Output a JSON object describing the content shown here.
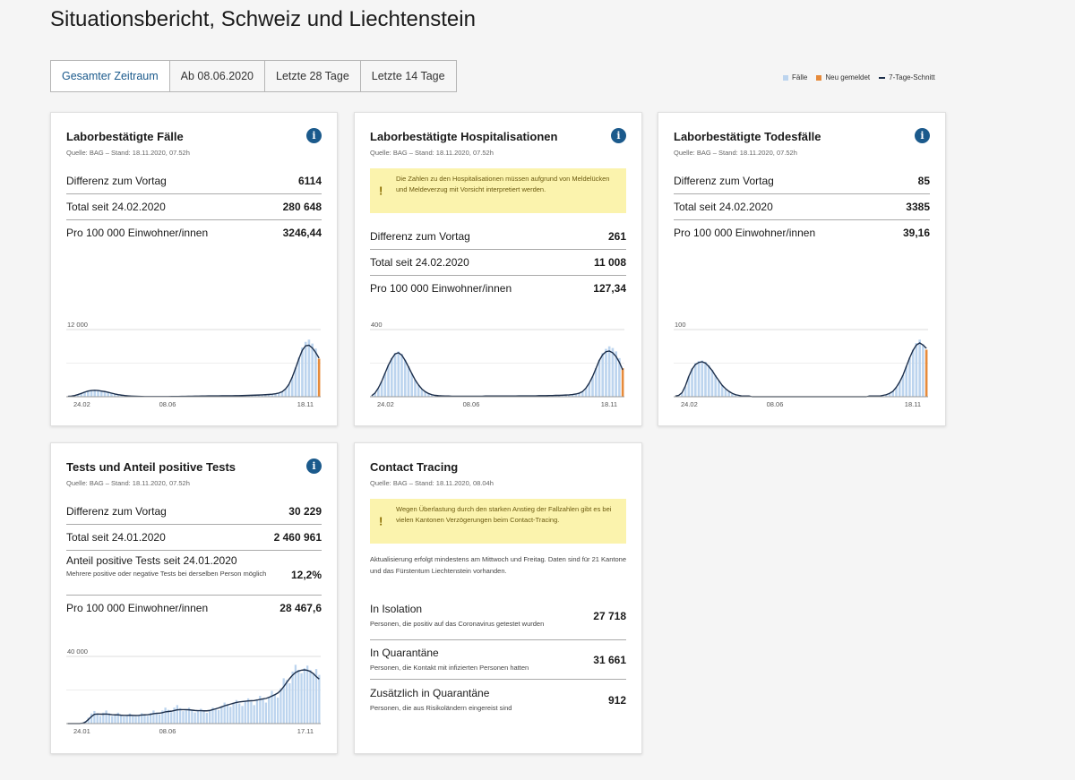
{
  "page": {
    "title": "Situationsbericht, Schweiz und Liechtenstein"
  },
  "tabs": [
    "Gesamter Zeitraum",
    "Ab 08.06.2020",
    "Letzte 28 Tage",
    "Letzte 14 Tage"
  ],
  "legend": [
    {
      "label": "Fälle",
      "color": "#bcd4ee"
    },
    {
      "label": "Neu gemeldet",
      "color": "#e68a3a"
    },
    {
      "label": "7-Tage-Schnitt",
      "color": "#1c2e4a"
    }
  ],
  "cards": {
    "cases": {
      "title": "Laborbestätigte Fälle",
      "source": "Quelle: BAG – Stand: 18.11.2020, 07.52h",
      "rows": [
        {
          "label": "Differenz zum Vortag",
          "value": "6114"
        },
        {
          "label": "Total seit 24.02.2020",
          "value": "280 648"
        },
        {
          "label": "Pro 100 000 Einwohner/innen",
          "value": "3246,44"
        }
      ]
    },
    "hosp": {
      "title": "Laborbestätigte Hospitalisationen",
      "source": "Quelle: BAG – Stand: 18.11.2020, 07.52h",
      "warning": "Die Zahlen zu den Hospitalisationen müssen aufgrund von Meldelücken und Meldeverzug mit Vorsicht interpretiert werden.",
      "rows": [
        {
          "label": "Differenz zum Vortag",
          "value": "261"
        },
        {
          "label": "Total seit 24.02.2020",
          "value": "11 008"
        },
        {
          "label": "Pro 100 000 Einwohner/innen",
          "value": "127,34"
        }
      ]
    },
    "deaths": {
      "title": "Laborbestätigte Todesfälle",
      "source": "Quelle: BAG – Stand: 18.11.2020, 07.52h",
      "rows": [
        {
          "label": "Differenz zum Vortag",
          "value": "85"
        },
        {
          "label": "Total seit 24.02.2020",
          "value": "3385"
        },
        {
          "label": "Pro 100 000 Einwohner/innen",
          "value": "39,16"
        }
      ]
    },
    "tests": {
      "title": "Tests und Anteil positive Tests",
      "source": "Quelle: BAG – Stand: 18.11.2020, 07.52h",
      "rows": [
        {
          "label": "Differenz zum Vortag",
          "value": "30 229"
        },
        {
          "label": "Total seit 24.01.2020",
          "value": "2 460 961"
        },
        {
          "label": "Anteil positive Tests seit 24.01.2020",
          "value": "12,2%",
          "sub": "Mehrere positive oder negative Tests bei derselben Person möglich"
        },
        {
          "label": "Pro 100 000 Einwohner/innen",
          "value": "28 467,6"
        }
      ]
    },
    "tracing": {
      "title": "Contact Tracing",
      "source": "Quelle: BAG – Stand: 18.11.2020, 08.04h",
      "warning": "Wegen Überlastung durch den starken Anstieg der Fallzahlen gibt es bei vielen Kantonen Verzögerungen beim Contact-Tracing.",
      "note": "Aktualisierung erfolgt mindestens am Mittwoch und Freitag. Daten sind für 21 Kantone und das Fürstentum Liechtenstein vorhanden.",
      "rows": [
        {
          "label": "In Isolation",
          "desc": "Personen, die positiv auf das Coronavirus getestet wurden",
          "value": "27 718"
        },
        {
          "label": "In Quarantäne",
          "desc": "Personen, die Kontakt mit infizierten Personen hatten",
          "value": "31 661"
        },
        {
          "label": "Zusätzlich in Quarantäne",
          "desc": "Personen, die aus Risikoländern eingereist sind",
          "value": "912"
        }
      ]
    }
  },
  "chart_data": [
    {
      "type": "bar",
      "id": "cases",
      "ymax_label": "12 000",
      "ymax": 12000,
      "ticks": [
        "24.02",
        "08.06",
        "18.11"
      ],
      "colors": {
        "bar": "#bcd4ee",
        "new": "#e68a3a",
        "line": "#1c2e4a"
      },
      "bars": [
        50,
        100,
        200,
        400,
        600,
        850,
        1050,
        1150,
        1200,
        1150,
        1050,
        950,
        800,
        650,
        500,
        380,
        280,
        200,
        150,
        110,
        80,
        60,
        45,
        35,
        30,
        25,
        20,
        25,
        28,
        30,
        35,
        40,
        45,
        50,
        60,
        70,
        80,
        90,
        100,
        110,
        120,
        130,
        140,
        145,
        150,
        155,
        160,
        165,
        170,
        175,
        180,
        190,
        200,
        220,
        240,
        260,
        280,
        300,
        330,
        360,
        400,
        450,
        520,
        650,
        900,
        1400,
        2200,
        3500,
        5200,
        7000,
        8800,
        9800,
        10200,
        9500,
        8600,
        6800
      ],
      "line": [
        60,
        110,
        210,
        390,
        590,
        820,
        1010,
        1110,
        1150,
        1110,
        1020,
        920,
        790,
        640,
        500,
        380,
        280,
        205,
        155,
        115,
        85,
        62,
        47,
        37,
        31,
        26,
        22,
        25,
        28,
        31,
        35,
        40,
        45,
        51,
        60,
        70,
        80,
        90,
        100,
        110,
        120,
        130,
        139,
        145,
        150,
        155,
        160,
        165,
        170,
        175,
        181,
        190,
        201,
        220,
        240,
        260,
        280,
        301,
        330,
        361,
        401,
        451,
        521,
        660,
        900,
        1400,
        2200,
        3500,
        5100,
        6800,
        8300,
        9100,
        9200,
        8700,
        7900,
        6900
      ],
      "new_reported": 6114
    },
    {
      "type": "bar",
      "id": "hosp",
      "ymax_label": "400",
      "ymax": 400,
      "ticks": [
        "24.02",
        "08.06",
        "18.11"
      ],
      "colors": {
        "bar": "#bcd4ee",
        "new": "#e68a3a",
        "line": "#1c2e4a"
      },
      "bars": [
        5,
        20,
        50,
        90,
        140,
        190,
        230,
        260,
        270,
        255,
        220,
        180,
        140,
        100,
        70,
        45,
        30,
        18,
        12,
        8,
        6,
        5,
        4,
        4,
        3,
        3,
        3,
        3,
        3,
        3,
        3,
        3,
        3,
        3,
        4,
        4,
        4,
        4,
        4,
        4,
        4,
        4,
        4,
        4,
        5,
        5,
        5,
        5,
        5,
        5,
        6,
        6,
        6,
        7,
        7,
        8,
        8,
        9,
        10,
        11,
        13,
        15,
        20,
        30,
        50,
        80,
        120,
        170,
        220,
        260,
        285,
        300,
        290,
        270,
        230,
        170
      ],
      "line": [
        6,
        22,
        52,
        92,
        140,
        188,
        226,
        255,
        262,
        248,
        216,
        178,
        138,
        100,
        70,
        46,
        30,
        19,
        12,
        8,
        6,
        5,
        4,
        4,
        3,
        3,
        3,
        3,
        3,
        3,
        3,
        3,
        3,
        3,
        4,
        4,
        4,
        4,
        4,
        4,
        4,
        4,
        4,
        4,
        5,
        5,
        5,
        5,
        5,
        5,
        6,
        6,
        6,
        7,
        7,
        8,
        8,
        9,
        10,
        11,
        13,
        16,
        21,
        31,
        51,
        81,
        120,
        168,
        216,
        250,
        268,
        272,
        262,
        240,
        205,
        160
      ],
      "new_reported": 261
    },
    {
      "type": "bar",
      "id": "deaths",
      "ymax_label": "100",
      "ymax": 100,
      "ticks": [
        "24.02",
        "08.06",
        "18.11"
      ],
      "colors": {
        "bar": "#bcd4ee",
        "new": "#e68a3a",
        "line": "#1c2e4a"
      },
      "bars": [
        0,
        1,
        5,
        15,
        30,
        42,
        50,
        53,
        54,
        52,
        47,
        40,
        32,
        24,
        17,
        11,
        7,
        4,
        3,
        2,
        1,
        1,
        1,
        0,
        0,
        0,
        0,
        0,
        0,
        0,
        0,
        0,
        0,
        0,
        0,
        0,
        0,
        0,
        0,
        0,
        0,
        0,
        0,
        0,
        0,
        0,
        0,
        0,
        0,
        0,
        0,
        0,
        0,
        0,
        0,
        0,
        0,
        0,
        1,
        1,
        1,
        1,
        2,
        3,
        5,
        8,
        14,
        22,
        32,
        45,
        58,
        70,
        80,
        85,
        78,
        70
      ],
      "line": [
        1,
        2,
        6,
        16,
        30,
        41,
        48,
        51,
        52,
        50,
        45,
        39,
        31,
        24,
        17,
        12,
        8,
        5,
        3,
        2,
        1,
        1,
        1,
        0,
        0,
        0,
        0,
        0,
        0,
        0,
        0,
        0,
        0,
        0,
        0,
        0,
        0,
        0,
        0,
        0,
        0,
        0,
        0,
        0,
        0,
        0,
        0,
        0,
        0,
        0,
        0,
        0,
        0,
        0,
        0,
        0,
        0,
        0,
        1,
        1,
        1,
        1,
        2,
        3,
        5,
        8,
        14,
        22,
        32,
        45,
        58,
        69,
        77,
        80,
        77,
        72
      ],
      "new_reported": 85
    },
    {
      "type": "bar",
      "id": "tests",
      "ymax_label": "40 000",
      "ymax": 40000,
      "ticks": [
        "24.01",
        "08.06",
        "17.11"
      ],
      "colors": {
        "bar": "#bcd4ee",
        "new": "#e68a3a",
        "line": "#1c2e4a"
      },
      "bars": [
        0,
        0,
        0,
        0,
        0,
        500,
        1500,
        3500,
        6000,
        7500,
        6000,
        4500,
        6500,
        7800,
        6200,
        4500,
        5500,
        6500,
        5200,
        4200,
        5000,
        6000,
        5000,
        4100,
        5200,
        6200,
        5400,
        4600,
        6400,
        7800,
        6600,
        5400,
        7800,
        9500,
        8200,
        6800,
        9500,
        11000,
        9200,
        7400,
        8500,
        9500,
        8000,
        6600,
        7800,
        8800,
        7600,
        6400,
        8000,
        9500,
        8800,
        8000,
        10500,
        12500,
        11500,
        10000,
        12500,
        14000,
        12000,
        10500,
        13000,
        15000,
        13000,
        11000,
        14500,
        16500,
        14500,
        12500,
        16000,
        19500,
        17500,
        15500,
        21000,
        27000,
        26000,
        24000,
        31000,
        35000,
        32000,
        30000,
        33000,
        34500,
        32000,
        30000,
        32500,
        29000
      ],
      "line": [
        0,
        0,
        0,
        0,
        0,
        200,
        900,
        2500,
        4200,
        5500,
        5700,
        5600,
        5600,
        5700,
        5500,
        5300,
        5200,
        5200,
        5000,
        4900,
        4900,
        5000,
        4900,
        4800,
        4900,
        5100,
        5200,
        5300,
        5500,
        5900,
        6100,
        6200,
        6500,
        7000,
        7200,
        7400,
        7800,
        8200,
        8300,
        8300,
        8300,
        8200,
        8000,
        7800,
        7700,
        7700,
        7600,
        7600,
        7800,
        8300,
        8800,
        9300,
        9900,
        10600,
        11100,
        11600,
        12100,
        12600,
        12900,
        13100,
        13300,
        13500,
        13600,
        13700,
        14000,
        14400,
        14700,
        15000,
        15600,
        16400,
        17200,
        18200,
        19800,
        22000,
        24500,
        26800,
        28900,
        30400,
        31300,
        31800,
        32000,
        31700,
        31000,
        29800,
        28000,
        26500
      ],
      "new_reported": 0
    }
  ]
}
